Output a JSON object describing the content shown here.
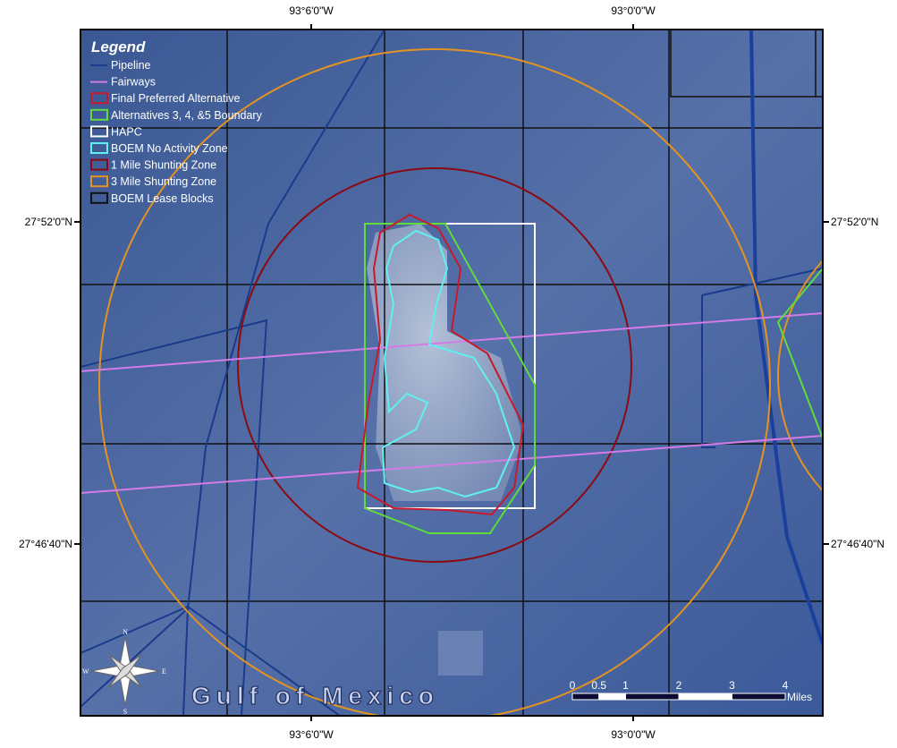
{
  "map": {
    "coords": {
      "top": [
        "93°6'0\"W",
        "93°0'0\"W"
      ],
      "bottom": [
        "93°6'0\"W",
        "93°0'0\"W"
      ],
      "left": [
        "27°52'0\"N",
        "27°46'40\"N"
      ],
      "right": [
        "27°52'0\"N",
        "27°46'40\"N"
      ]
    },
    "legend": {
      "title": "Legend",
      "items": [
        "Pipeline",
        "Fairways",
        "Final Preferred Alternative",
        "Alternatives 3, 4, &5 Boundary",
        "HAPC",
        "BOEM No Activity Zone",
        "1 Mile Shunting Zone",
        "3 Mile Shunting Zone",
        "BOEM Lease Blocks"
      ]
    },
    "label": "Gulf of Mexico",
    "compass": {
      "n": "N",
      "s": "S",
      "e": "E",
      "w": "W"
    },
    "scale": {
      "ticks": [
        0,
        0.5,
        1,
        2,
        3,
        4
      ],
      "unit": "Miles"
    }
  }
}
